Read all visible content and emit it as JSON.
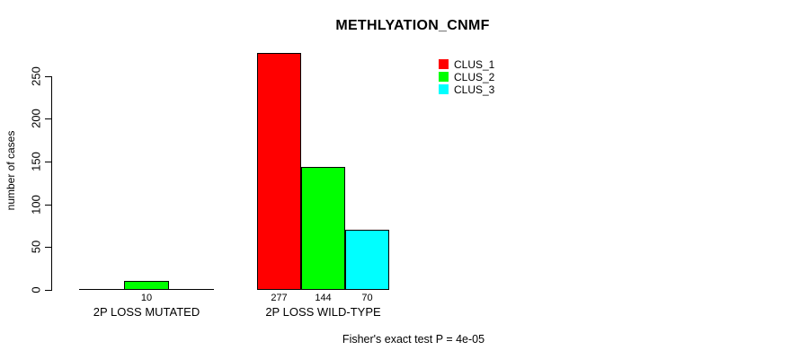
{
  "title": "METHLYATION_CNMF",
  "y_axis_label": "number of cases",
  "footnote": "Fisher's exact test P = 4e-05",
  "legend": {
    "items": [
      {
        "label": "CLUS_1",
        "color": "#FF0000"
      },
      {
        "label": "CLUS_2",
        "color": "#00FF00"
      },
      {
        "label": "CLUS_3",
        "color": "#00FFFF"
      }
    ]
  },
  "chart_data": {
    "type": "bar",
    "title": "METHLYATION_CNMF",
    "ylabel": "number of cases",
    "xlabel": "",
    "categories": [
      "2P LOSS MUTATED",
      "2P LOSS WILD-TYPE"
    ],
    "series": [
      {
        "name": "CLUS_1",
        "color": "#FF0000",
        "values": [
          0,
          277
        ]
      },
      {
        "name": "CLUS_2",
        "color": "#00FF00",
        "values": [
          10,
          144
        ]
      },
      {
        "name": "CLUS_3",
        "color": "#00FFFF",
        "values": [
          0,
          70
        ]
      }
    ],
    "bar_value_labels": [
      [
        "",
        "277"
      ],
      [
        "10",
        "144"
      ],
      [
        "",
        "70"
      ]
    ],
    "yticks": [
      0,
      50,
      100,
      150,
      200,
      250
    ],
    "ylim": [
      0,
      277
    ],
    "grid": false,
    "legend_position": "top-right",
    "annotation": "Fisher's exact test P = 4e-05"
  }
}
